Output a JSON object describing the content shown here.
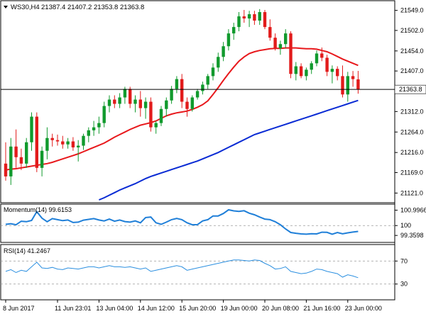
{
  "header": {
    "symbol": "WS30,H4",
    "ohlc": "21387.4 21407.2 21353.8 21363.8"
  },
  "chart_data": {
    "type": "candlestick",
    "price_ticks": [
      "21549.0",
      "21502.0",
      "21454.0",
      "21407.0",
      "21359.0",
      "21312.0",
      "21264.0",
      "21216.0",
      "21169.0",
      "21121.0"
    ],
    "tick_values": [
      21549.0,
      21502.0,
      21454.0,
      21407.0,
      21359.0,
      21312.0,
      21264.0,
      21216.0,
      21169.0,
      21121.0
    ],
    "price_range": [
      21105,
      21565
    ],
    "current_price_label": "21363.8",
    "current_price": 21363.8,
    "x_labels": [
      "8 Jun 2017",
      "11 Jun 23:01",
      "13 Jun 04:00",
      "14 Jun 12:00",
      "15 Jun 20:00",
      "19 Jun 00:00",
      "20 Jun 08:00",
      "21 Jun 16:00",
      "23 Jun 00:00"
    ],
    "x_label_index": [
      0,
      10,
      18,
      26,
      34,
      42,
      50,
      58,
      66
    ],
    "ohlc": [
      [
        21190,
        21240,
        21150,
        21160
      ],
      [
        21160,
        21250,
        21140,
        21230
      ],
      [
        21230,
        21270,
        21180,
        21205
      ],
      [
        21205,
        21225,
        21175,
        21190
      ],
      [
        21190,
        21250,
        21180,
        21240
      ],
      [
        21240,
        21310,
        21220,
        21300
      ],
      [
        21300,
        21310,
        21170,
        21180
      ],
      [
        21180,
        21230,
        21160,
        21220
      ],
      [
        21220,
        21275,
        21200,
        21250
      ],
      [
        21250,
        21260,
        21230,
        21245
      ],
      [
        21245,
        21258,
        21232,
        21242
      ],
      [
        21242,
        21255,
        21225,
        21235
      ],
      [
        21235,
        21250,
        21225,
        21242
      ],
      [
        21242,
        21252,
        21220,
        21228
      ],
      [
        21228,
        21245,
        21195,
        21232
      ],
      [
        21232,
        21260,
        21222,
        21255
      ],
      [
        21255,
        21275,
        21240,
        21268
      ],
      [
        21268,
        21290,
        21255,
        21275
      ],
      [
        21275,
        21300,
        21260,
        21285
      ],
      [
        21285,
        21335,
        21275,
        21325
      ],
      [
        21325,
        21350,
        21310,
        21340
      ],
      [
        21340,
        21350,
        21320,
        21330
      ],
      [
        21330,
        21355,
        21320,
        21345
      ],
      [
        21345,
        21370,
        21330,
        21365
      ],
      [
        21365,
        21370,
        21320,
        21330
      ],
      [
        21330,
        21350,
        21310,
        21340
      ],
      [
        21340,
        21360,
        21300,
        21320
      ],
      [
        21320,
        21345,
        21295,
        21335
      ],
      [
        21335,
        21345,
        21265,
        21275
      ],
      [
        21275,
        21290,
        21260,
        21285
      ],
      [
        21285,
        21325,
        21278,
        21318
      ],
      [
        21318,
        21345,
        21300,
        21338
      ],
      [
        21338,
        21372,
        21330,
        21365
      ],
      [
        21365,
        21395,
        21355,
        21388
      ],
      [
        21388,
        21400,
        21320,
        21335
      ],
      [
        21335,
        21345,
        21300,
        21318
      ],
      [
        21318,
        21350,
        21312,
        21345
      ],
      [
        21345,
        21365,
        21340,
        21360
      ],
      [
        21360,
        21382,
        21352,
        21375
      ],
      [
        21375,
        21400,
        21365,
        21395
      ],
      [
        21395,
        21425,
        21385,
        21415
      ],
      [
        21415,
        21450,
        21405,
        21440
      ],
      [
        21440,
        21475,
        21430,
        21465
      ],
      [
        21465,
        21505,
        21455,
        21495
      ],
      [
        21495,
        21520,
        21480,
        21510
      ],
      [
        21510,
        21545,
        21500,
        21535
      ],
      [
        21535,
        21550,
        21520,
        21530
      ],
      [
        21530,
        21548,
        21510,
        21540
      ],
      [
        21540,
        21548,
        21515,
        21525
      ],
      [
        21525,
        21552,
        21515,
        21545
      ],
      [
        21545,
        21550,
        21505,
        21510
      ],
      [
        21510,
        21528,
        21478,
        21485
      ],
      [
        21485,
        21495,
        21455,
        21460
      ],
      [
        21460,
        21478,
        21445,
        21470
      ],
      [
        21470,
        21505,
        21460,
        21495
      ],
      [
        21495,
        21500,
        21390,
        21400
      ],
      [
        21400,
        21428,
        21385,
        21418
      ],
      [
        21418,
        21425,
        21390,
        21395
      ],
      [
        21395,
        21415,
        21385,
        21410
      ],
      [
        21410,
        21430,
        21400,
        21425
      ],
      [
        21425,
        21455,
        21418,
        21448
      ],
      [
        21448,
        21462,
        21430,
        21438
      ],
      [
        21438,
        21445,
        21395,
        21405
      ],
      [
        21405,
        21420,
        21378,
        21412
      ],
      [
        21412,
        21418,
        21385,
        21395
      ],
      [
        21395,
        21420,
        21345,
        21352
      ],
      [
        21352,
        21405,
        21335,
        21395
      ],
      [
        21395,
        21407,
        21370,
        21388
      ],
      [
        21387.4,
        21407.2,
        21353.8,
        21363.8
      ]
    ],
    "ma_red": [
      21175,
      21177,
      21178,
      21180,
      21182,
      21184,
      21186,
      21188,
      21190,
      21193,
      21197,
      21201,
      21205,
      21209,
      21213,
      21218,
      21223,
      21228,
      21233,
      21238,
      21245,
      21252,
      21258,
      21264,
      21270,
      21275,
      21280,
      21283,
      21286,
      21290,
      21296,
      21302,
      21306,
      21309,
      21311,
      21313,
      21317,
      21322,
      21328,
      21337,
      21352,
      21368,
      21385,
      21401,
      21416,
      21430,
      21440,
      21448,
      21452,
      21455,
      21457,
      21459,
      21460,
      21460,
      21461,
      21461,
      21461,
      21460,
      21459,
      21459,
      21458,
      21455,
      21452,
      21447,
      21441,
      21435,
      21430,
      21425,
      21420
    ],
    "ma_blue": [
      null,
      null,
      null,
      null,
      null,
      null,
      null,
      null,
      null,
      null,
      null,
      null,
      null,
      null,
      null,
      null,
      null,
      null,
      21105,
      21110,
      21116,
      21122,
      21128,
      21133,
      21138,
      21143,
      21149,
      21155,
      21160,
      21164,
      21168,
      21172,
      21176,
      21180,
      21184,
      21188,
      21192,
      21196,
      21201,
      21206,
      21211,
      21216,
      21222,
      21228,
      21234,
      21240,
      21246,
      21252,
      21258,
      21262,
      21266,
      21270,
      21274,
      21278,
      21282,
      21286,
      21290,
      21294,
      21298,
      21302,
      21306,
      21310,
      21314,
      21318,
      21322,
      21326,
      21330,
      21334,
      21338
    ],
    "momentum": {
      "label": "Momentum(14) 99.6153",
      "ticks": [
        "100.9966",
        "100",
        "99.3598"
      ],
      "tick_values": [
        100.9966,
        100,
        99.3598
      ],
      "range": [
        99.0,
        101.25
      ],
      "values": [
        100.08,
        100.12,
        100.05,
        100.28,
        100.25,
        100.33,
        100.9,
        100.48,
        100.25,
        100.45,
        100.38,
        100.32,
        100.36,
        100.2,
        100.22,
        100.35,
        100.4,
        100.45,
        100.36,
        100.3,
        100.42,
        100.28,
        100.36,
        100.26,
        100.22,
        100.3,
        100.18,
        100.52,
        100.55,
        100.18,
        100.08,
        100.22,
        100.38,
        100.46,
        100.38,
        100.18,
        100.05,
        100.06,
        100.3,
        100.38,
        100.62,
        100.62,
        100.78,
        101.02,
        100.95,
        100.92,
        100.96,
        100.8,
        100.7,
        100.55,
        100.42,
        100.38,
        100.25,
        100.05,
        99.78,
        99.55,
        99.5,
        99.46,
        99.44,
        99.47,
        99.46,
        99.57,
        99.56,
        99.44,
        99.55,
        99.47,
        99.53,
        99.58,
        99.62
      ]
    },
    "rsi": {
      "label": "RSI(14) 41.2467",
      "ticks": [
        "70",
        "30"
      ],
      "tick_values": [
        70,
        30
      ],
      "range": [
        5,
        95
      ],
      "values": [
        52,
        55,
        50,
        54,
        52,
        60,
        68,
        58,
        57,
        59,
        56,
        55,
        58,
        57,
        56,
        58,
        60,
        60,
        58,
        60,
        62,
        60,
        60,
        59,
        60,
        58,
        56,
        58,
        52,
        54,
        56,
        58,
        60,
        62,
        60,
        54,
        56,
        58,
        60,
        62,
        64,
        66,
        68,
        70,
        72,
        72,
        71,
        70,
        72,
        71,
        66,
        62,
        56,
        57,
        60,
        52,
        50,
        48,
        49,
        52,
        56,
        55,
        52,
        50,
        48,
        42,
        46,
        44,
        41
      ]
    }
  }
}
